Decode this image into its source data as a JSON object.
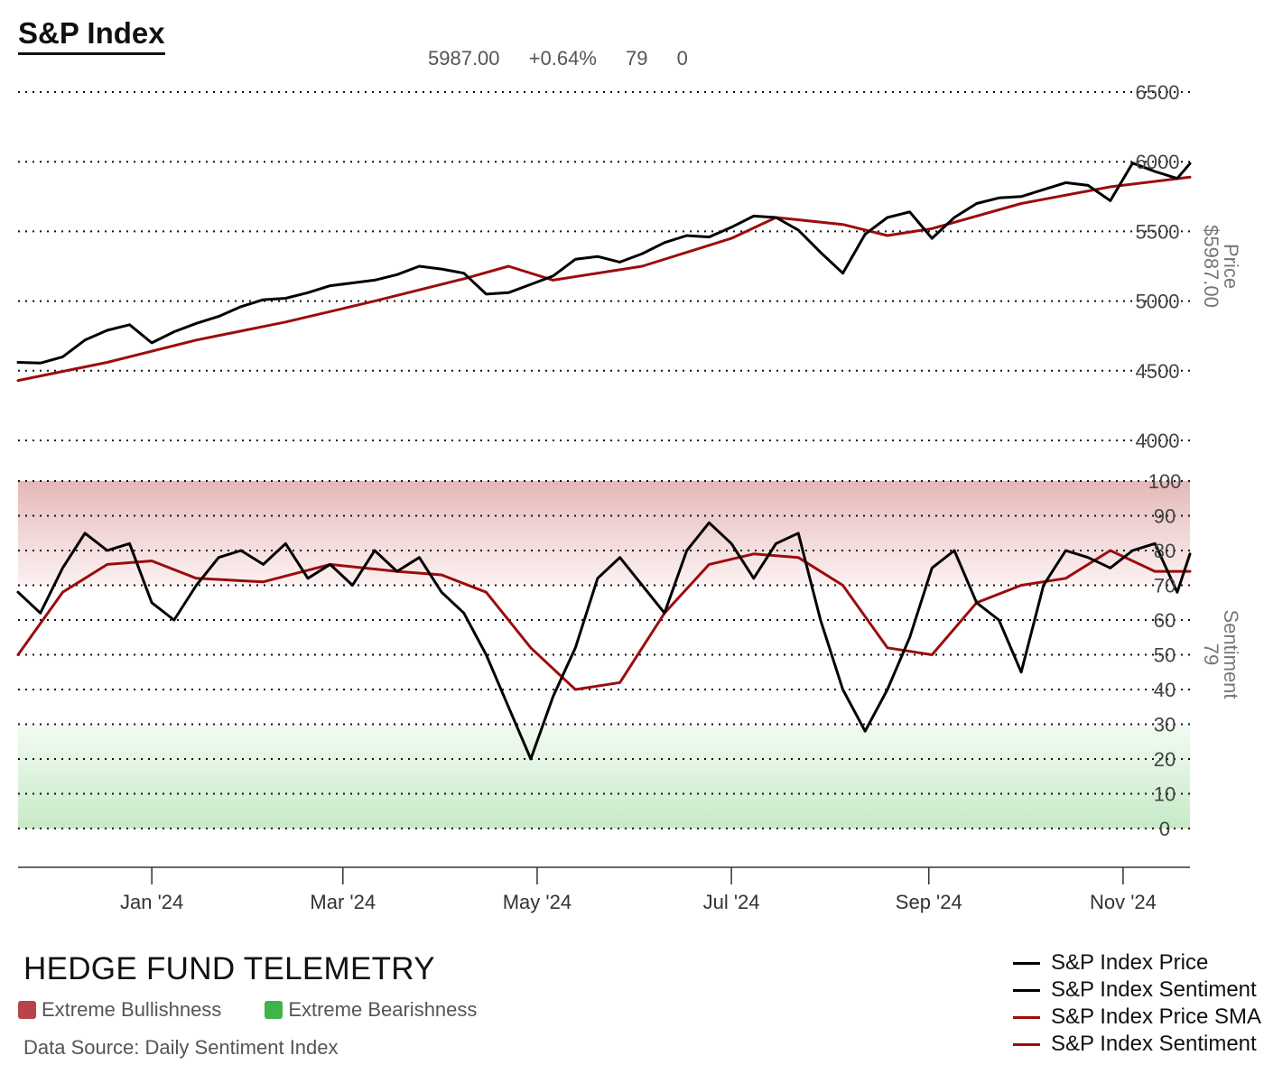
{
  "header": {
    "title": "S&P Index",
    "stats": [
      "5987.00",
      "+0.64%",
      "79",
      "0"
    ]
  },
  "price_axis": {
    "label": "Price",
    "value_label": "$5987.00"
  },
  "sentiment_axis": {
    "label": "Sentiment",
    "value_label": "79"
  },
  "footer": {
    "brand": "HEDGE FUND TELEMETRY",
    "source": "Data Source: Daily Sentiment Index",
    "zones": [
      {
        "label": "Extreme Bullishness",
        "color": "#b8434a"
      },
      {
        "label": "Extreme Bearishness",
        "color": "#3fb449"
      }
    ]
  },
  "legend": [
    {
      "label": "S&P Index Price",
      "color": "#000000"
    },
    {
      "label": "S&P Index Sentiment",
      "color": "#000000"
    },
    {
      "label": "S&P Index Price SMA",
      "color": "#9b0d0d"
    },
    {
      "label": "S&P Index Sentiment",
      "color": "#9b0d0d"
    }
  ],
  "chart_data": [
    {
      "type": "line",
      "panel": "price",
      "x_ticks": [
        "Jan '24",
        "Mar '24",
        "May '24",
        "Jul '24",
        "Sep '24",
        "Nov '24"
      ],
      "x_tick_dates": [
        "2024-01-01",
        "2024-03-01",
        "2024-05-01",
        "2024-07-01",
        "2024-09-01",
        "2024-11-01"
      ],
      "x_range": [
        "2023-11-20",
        "2024-11-22"
      ],
      "y_ticks": [
        4000,
        4500,
        5000,
        5500,
        6000,
        6500
      ],
      "ylim": [
        4000,
        6500
      ],
      "grid": true,
      "series": [
        {
          "name": "S&P Index Price",
          "color": "#000000",
          "x": [
            "2023-11-20",
            "2023-11-27",
            "2023-12-04",
            "2023-12-11",
            "2023-12-18",
            "2023-12-25",
            "2024-01-01",
            "2024-01-08",
            "2024-01-15",
            "2024-01-22",
            "2024-01-29",
            "2024-02-05",
            "2024-02-12",
            "2024-02-19",
            "2024-02-26",
            "2024-03-04",
            "2024-03-11",
            "2024-03-18",
            "2024-03-25",
            "2024-04-01",
            "2024-04-08",
            "2024-04-15",
            "2024-04-22",
            "2024-04-29",
            "2024-05-06",
            "2024-05-13",
            "2024-05-20",
            "2024-05-27",
            "2024-06-03",
            "2024-06-10",
            "2024-06-17",
            "2024-06-24",
            "2024-07-01",
            "2024-07-08",
            "2024-07-15",
            "2024-07-22",
            "2024-07-29",
            "2024-08-05",
            "2024-08-12",
            "2024-08-19",
            "2024-08-26",
            "2024-09-02",
            "2024-09-09",
            "2024-09-16",
            "2024-09-23",
            "2024-09-30",
            "2024-10-07",
            "2024-10-14",
            "2024-10-21",
            "2024-10-28",
            "2024-11-04",
            "2024-11-11",
            "2024-11-18",
            "2024-11-22"
          ],
          "values": [
            4560,
            4555,
            4600,
            4720,
            4790,
            4830,
            4700,
            4780,
            4840,
            4890,
            4960,
            5010,
            5020,
            5060,
            5110,
            5130,
            5150,
            5190,
            5250,
            5230,
            5200,
            5050,
            5060,
            5120,
            5180,
            5300,
            5320,
            5280,
            5340,
            5420,
            5470,
            5460,
            5530,
            5610,
            5600,
            5510,
            5350,
            5200,
            5480,
            5600,
            5640,
            5450,
            5600,
            5700,
            5740,
            5750,
            5800,
            5850,
            5830,
            5720,
            5990,
            5930,
            5880,
            5987
          ]
        },
        {
          "name": "S&P Index Price SMA",
          "color": "#9b0d0d",
          "x": [
            "2023-11-20",
            "2023-12-18",
            "2024-01-15",
            "2024-02-12",
            "2024-03-11",
            "2024-04-08",
            "2024-04-22",
            "2024-05-06",
            "2024-06-03",
            "2024-07-01",
            "2024-07-15",
            "2024-08-05",
            "2024-08-19",
            "2024-09-02",
            "2024-09-30",
            "2024-10-28",
            "2024-11-22"
          ],
          "values": [
            4430,
            4560,
            4720,
            4850,
            5000,
            5160,
            5250,
            5150,
            5250,
            5450,
            5600,
            5550,
            5470,
            5520,
            5700,
            5820,
            5890
          ]
        }
      ]
    },
    {
      "type": "line",
      "panel": "sentiment",
      "y_ticks": [
        0,
        10,
        20,
        30,
        40,
        50,
        60,
        70,
        80,
        90,
        100
      ],
      "ylim": [
        0,
        100
      ],
      "grid": true,
      "zones": [
        {
          "label": "Extreme Bullishness",
          "from": 70,
          "to": 100
        },
        {
          "label": "Extreme Bearishness",
          "from": 0,
          "to": 30
        }
      ],
      "series": [
        {
          "name": "S&P Index Sentiment",
          "color": "#000000",
          "x": [
            "2023-11-20",
            "2023-11-27",
            "2023-12-04",
            "2023-12-11",
            "2023-12-18",
            "2023-12-25",
            "2024-01-01",
            "2024-01-08",
            "2024-01-15",
            "2024-01-22",
            "2024-01-29",
            "2024-02-05",
            "2024-02-12",
            "2024-02-19",
            "2024-02-26",
            "2024-03-04",
            "2024-03-11",
            "2024-03-18",
            "2024-03-25",
            "2024-04-01",
            "2024-04-08",
            "2024-04-15",
            "2024-04-22",
            "2024-04-29",
            "2024-05-06",
            "2024-05-13",
            "2024-05-20",
            "2024-05-27",
            "2024-06-03",
            "2024-06-10",
            "2024-06-17",
            "2024-06-24",
            "2024-07-01",
            "2024-07-08",
            "2024-07-15",
            "2024-07-22",
            "2024-07-29",
            "2024-08-05",
            "2024-08-12",
            "2024-08-19",
            "2024-08-26",
            "2024-09-02",
            "2024-09-09",
            "2024-09-16",
            "2024-09-23",
            "2024-09-30",
            "2024-10-07",
            "2024-10-14",
            "2024-10-21",
            "2024-10-28",
            "2024-11-04",
            "2024-11-11",
            "2024-11-18",
            "2024-11-22"
          ],
          "values": [
            68,
            62,
            75,
            85,
            80,
            82,
            65,
            60,
            70,
            78,
            80,
            76,
            82,
            72,
            76,
            70,
            80,
            74,
            78,
            68,
            62,
            50,
            35,
            20,
            38,
            52,
            72,
            78,
            70,
            62,
            80,
            88,
            82,
            72,
            82,
            85,
            60,
            40,
            28,
            40,
            55,
            75,
            80,
            65,
            60,
            45,
            70,
            80,
            78,
            75,
            80,
            82,
            68,
            79
          ]
        },
        {
          "name": "S&P Index Sentiment",
          "color": "#9b0d0d",
          "x": [
            "2023-11-20",
            "2023-12-04",
            "2023-12-18",
            "2024-01-01",
            "2024-01-15",
            "2024-02-05",
            "2024-02-26",
            "2024-03-18",
            "2024-04-01",
            "2024-04-15",
            "2024-04-29",
            "2024-05-13",
            "2024-05-27",
            "2024-06-10",
            "2024-06-24",
            "2024-07-08",
            "2024-07-22",
            "2024-08-05",
            "2024-08-19",
            "2024-09-02",
            "2024-09-16",
            "2024-09-30",
            "2024-10-14",
            "2024-10-28",
            "2024-11-11",
            "2024-11-22"
          ],
          "values": [
            50,
            68,
            76,
            77,
            72,
            71,
            76,
            74,
            73,
            68,
            52,
            40,
            42,
            62,
            76,
            79,
            78,
            70,
            52,
            50,
            65,
            70,
            72,
            80,
            74,
            74
          ]
        }
      ]
    }
  ]
}
